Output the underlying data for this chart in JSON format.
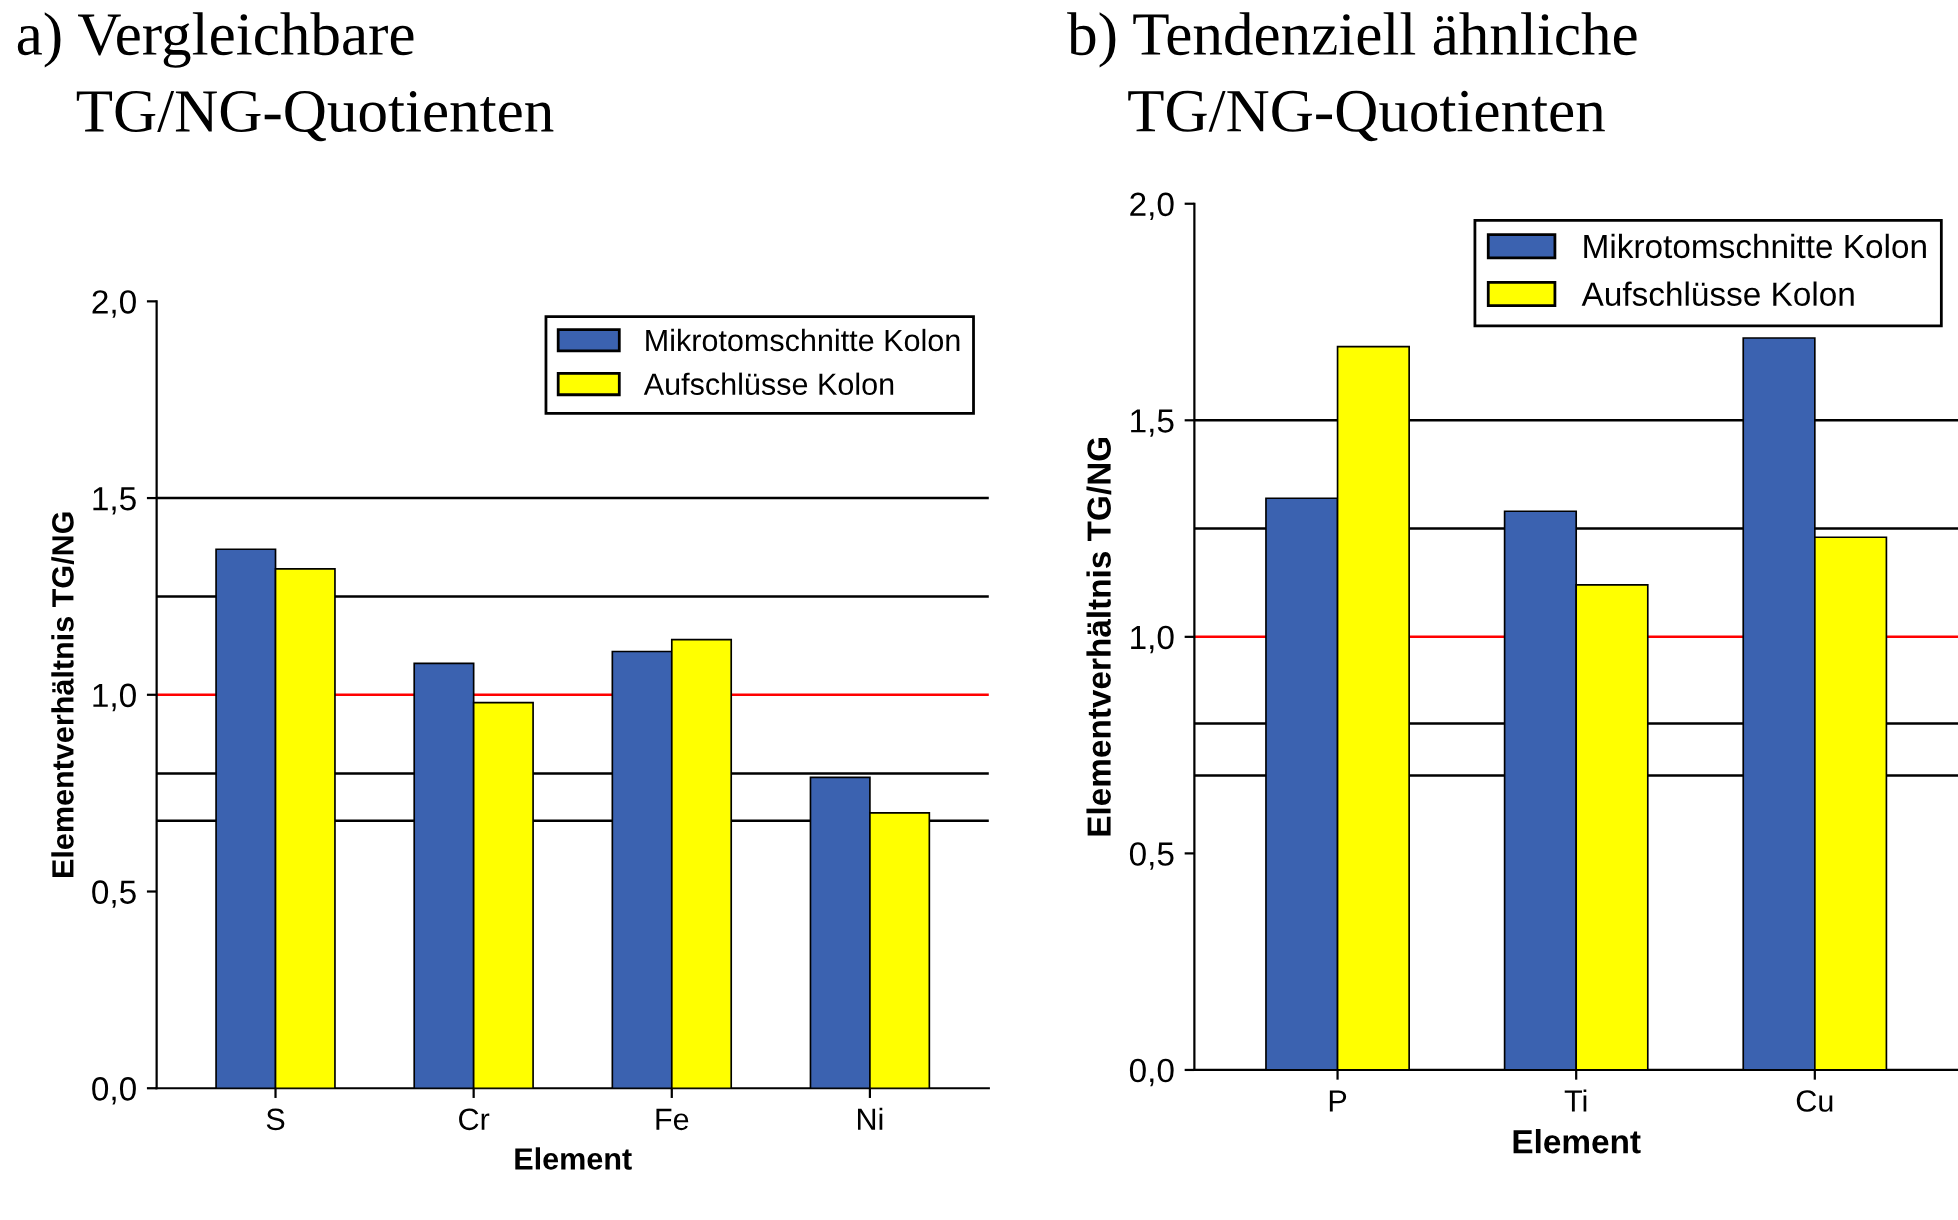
{
  "chart_data": [
    {
      "type": "bar",
      "title": "a) Vergleichbare\n    TG/NG-Quotienten",
      "xlabel": "Element",
      "ylabel": "Elementverhältnis TG/NG",
      "categories": [
        "S",
        "Cr",
        "Fe",
        "Ni"
      ],
      "series": [
        {
          "name": "Mikrotomschnitte Kolon",
          "color": "#3b62b0",
          "values": [
            1.37,
            1.08,
            1.11,
            0.79
          ]
        },
        {
          "name": "Aufschlüsse Kolon",
          "color": "#ffff00",
          "values": [
            1.32,
            0.98,
            1.14,
            0.7
          ]
        }
      ],
      "ylim": [
        0,
        2
      ],
      "yticks": [
        {
          "value": 0,
          "label": "0,0"
        },
        {
          "value": 0.5,
          "label": "0,5"
        },
        {
          "value": 1,
          "label": "1,0"
        },
        {
          "value": 1.5,
          "label": "1,5"
        },
        {
          "value": 2,
          "label": "2,0"
        }
      ],
      "ref_lines": [
        {
          "axis": "y",
          "value": 1.5,
          "color": "#000000"
        },
        {
          "axis": "y",
          "value": 1.25,
          "color": "#000000"
        },
        {
          "axis": "y",
          "value": 1.0,
          "color": "#ff0000"
        },
        {
          "axis": "y",
          "value": 0.8,
          "color": "#000000"
        },
        {
          "axis": "y",
          "value": 0.68,
          "color": "#000000"
        }
      ],
      "legend": "top right"
    },
    {
      "type": "bar",
      "title": "b) Tendenziell ähnliche\n    TG/NG-Quotienten",
      "xlabel": "Element",
      "ylabel": "Elementverhältnis TG/NG",
      "categories": [
        "P",
        "Ti",
        "Cu"
      ],
      "series": [
        {
          "name": "Mikrotomschnitte Kolon",
          "color": "#3b62b0",
          "values": [
            1.32,
            1.29,
            1.69
          ]
        },
        {
          "name": "Aufschlüsse Kolon",
          "color": "#ffff00",
          "values": [
            1.67,
            1.12,
            1.23
          ]
        }
      ],
      "ylim": [
        0,
        2
      ],
      "yticks": [
        {
          "value": 0,
          "label": "0,0"
        },
        {
          "value": 0.5,
          "label": "0,5"
        },
        {
          "value": 1,
          "label": "1,0"
        },
        {
          "value": 1.5,
          "label": "1,5"
        },
        {
          "value": 2,
          "label": "2,0"
        }
      ],
      "ref_lines": [
        {
          "axis": "y",
          "value": 1.5,
          "color": "#000000"
        },
        {
          "axis": "y",
          "value": 1.25,
          "color": "#000000"
        },
        {
          "axis": "y",
          "value": 1.0,
          "color": "#ff0000"
        },
        {
          "axis": "y",
          "value": 0.8,
          "color": "#000000"
        },
        {
          "axis": "y",
          "value": 0.68,
          "color": "#000000"
        }
      ],
      "legend": "top right"
    }
  ]
}
